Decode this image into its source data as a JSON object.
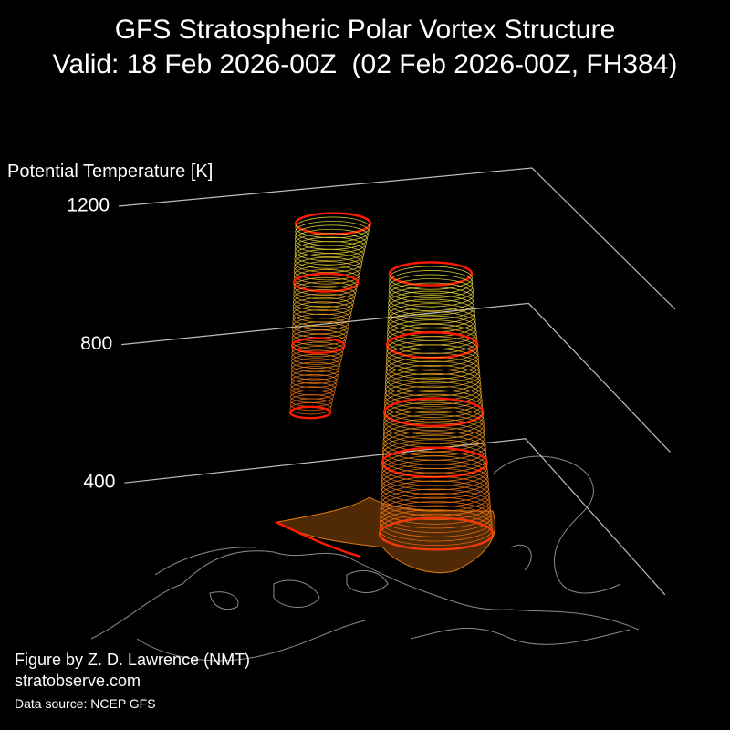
{
  "chart_data": {
    "type": "vortex3d",
    "title": "GFS Stratospheric Polar Vortex Structure",
    "subtitle": "Valid: 18 Feb 2026-00Z  (02 Feb 2026-00Z, FH384)",
    "ylabel": "Potential Temperature [K]",
    "ylim": [
      200,
      1200
    ],
    "yticks": [
      400,
      800,
      1200
    ],
    "grid": true,
    "credits": [
      "Figure by Z. D. Lawrence (NMT)",
      "stratobserve.com"
    ],
    "source": "Data source: NCEP GFS"
  }
}
